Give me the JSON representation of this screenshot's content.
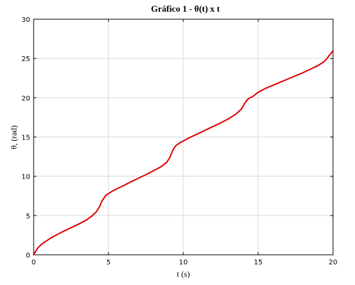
{
  "chart_data": {
    "type": "line",
    "title": "Gráfico 1 - θ(t) x t",
    "xlabel": "t (s)",
    "ylabel": "θ, (rad)",
    "xlim": [
      0,
      20
    ],
    "ylim": [
      0,
      30
    ],
    "xticks": [
      0,
      5,
      10,
      15,
      20
    ],
    "yticks": [
      0,
      5,
      10,
      15,
      20,
      25,
      30
    ],
    "grid": true,
    "colors": {
      "line": "#e00000"
    },
    "series": [
      {
        "x": [
          0,
          0.15,
          0.3,
          0.5,
          0.8,
          1.2,
          1.6,
          2.0,
          2.5,
          3.0,
          3.5,
          3.9,
          4.2,
          4.4,
          4.55,
          4.65,
          4.8,
          5.0,
          5.3,
          5.6,
          6.0,
          6.5,
          7.0,
          7.5,
          8.0,
          8.5,
          8.9,
          9.1,
          9.25,
          9.35,
          9.5,
          9.65,
          9.8,
          10.0,
          10.5,
          11.0,
          11.5,
          12.0,
          12.5,
          13.0,
          13.5,
          13.9,
          14.1,
          14.3,
          14.45,
          14.6,
          14.8,
          15.0,
          15.5,
          16.0,
          16.5,
          17.0,
          17.5,
          18.0,
          18.5,
          19.0,
          19.4,
          19.6,
          19.75,
          19.9,
          20.0
        ],
        "y": [
          0,
          0.5,
          0.9,
          1.3,
          1.7,
          2.2,
          2.6,
          3.0,
          3.45,
          3.9,
          4.4,
          4.95,
          5.5,
          6.1,
          6.8,
          7.1,
          7.5,
          7.8,
          8.15,
          8.45,
          8.8,
          9.3,
          9.75,
          10.2,
          10.7,
          11.2,
          11.8,
          12.4,
          13.1,
          13.5,
          13.9,
          14.1,
          14.3,
          14.5,
          15.0,
          15.45,
          15.9,
          16.35,
          16.8,
          17.3,
          17.9,
          18.6,
          19.3,
          19.8,
          20.0,
          20.1,
          20.4,
          20.7,
          21.2,
          21.6,
          22.0,
          22.4,
          22.8,
          23.2,
          23.65,
          24.1,
          24.6,
          25.0,
          25.4,
          25.75,
          26.0
        ]
      }
    ]
  }
}
